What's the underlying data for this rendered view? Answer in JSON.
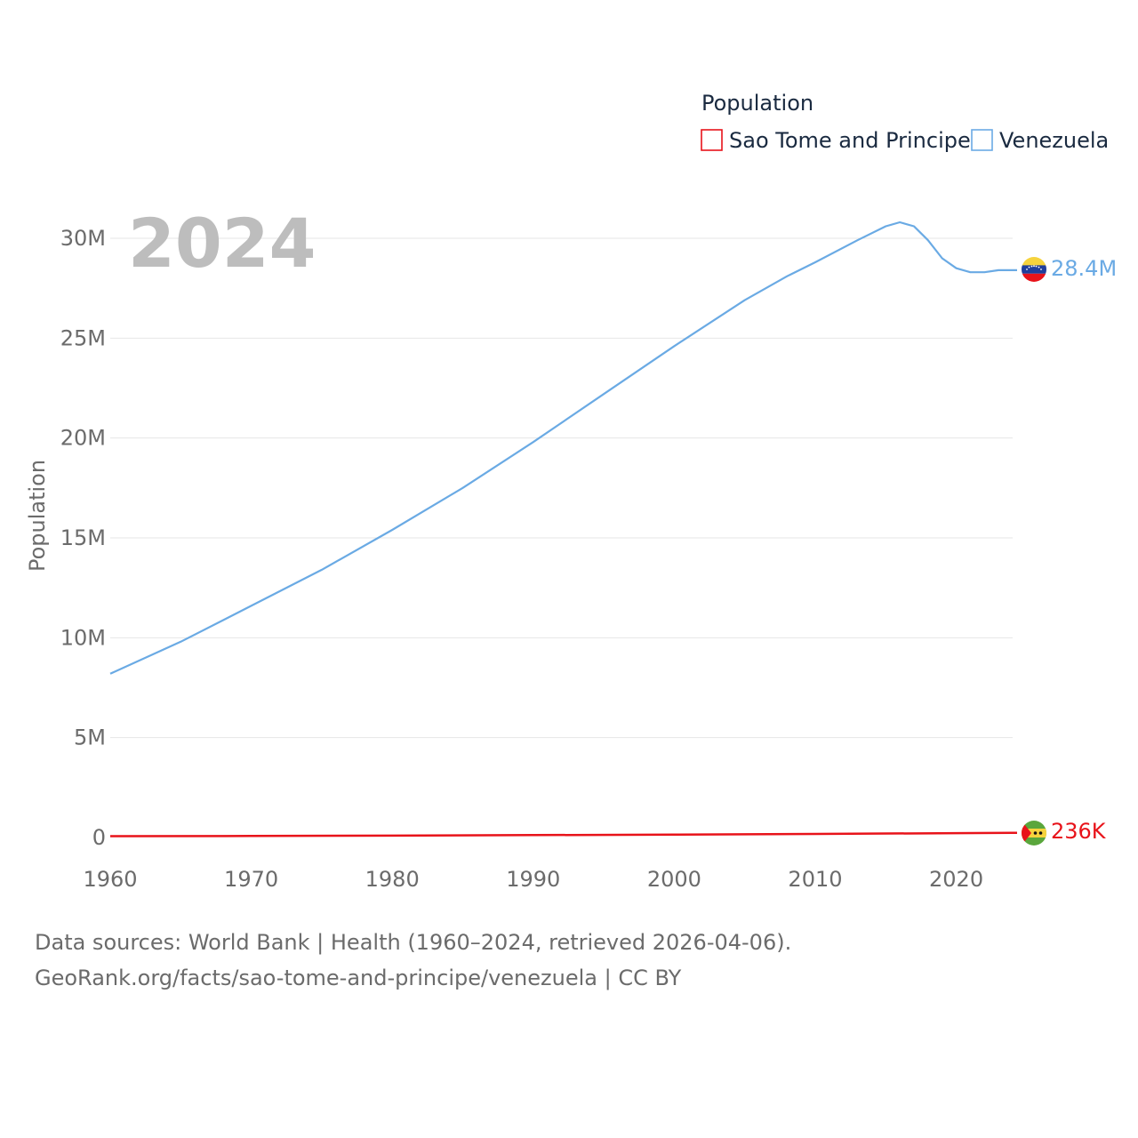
{
  "chart_data": {
    "type": "line",
    "legend": {
      "title": "Population",
      "position": "top-right"
    },
    "current_year_label": "2024",
    "ylabel": "Population",
    "xlabel": "",
    "xlim": [
      1960,
      2024
    ],
    "ylim": [
      0,
      30000000
    ],
    "grid": true,
    "x_ticks": [
      {
        "value": 1960,
        "label": "1960"
      },
      {
        "value": 1970,
        "label": "1970"
      },
      {
        "value": 1980,
        "label": "1980"
      },
      {
        "value": 1990,
        "label": "1990"
      },
      {
        "value": 2000,
        "label": "2000"
      },
      {
        "value": 2010,
        "label": "2010"
      },
      {
        "value": 2020,
        "label": "2020"
      }
    ],
    "y_ticks": [
      {
        "value": 0,
        "label": "0"
      },
      {
        "value": 5000000,
        "label": "5M"
      },
      {
        "value": 10000000,
        "label": "10M"
      },
      {
        "value": 15000000,
        "label": "15M"
      },
      {
        "value": 20000000,
        "label": "20M"
      },
      {
        "value": 25000000,
        "label": "25M"
      },
      {
        "value": 30000000,
        "label": "30M"
      }
    ],
    "series": [
      {
        "name": "Sao Tome and Principe",
        "color": "#e8131a",
        "end_label": "236K",
        "end_icon": "sao-tome-and-principe-flag-icon",
        "x": [
          1960,
          1970,
          1980,
          1990,
          2000,
          2010,
          2020,
          2024
        ],
        "values": [
          65000,
          74000,
          95000,
          120000,
          142000,
          180000,
          219000,
          236000
        ]
      },
      {
        "name": "Venezuela",
        "color": "#6aaae4",
        "end_label": "28.4M",
        "end_icon": "venezuela-flag-icon",
        "x": [
          1960,
          1965,
          1970,
          1975,
          1980,
          1985,
          1990,
          1995,
          2000,
          2005,
          2008,
          2010,
          2013,
          2015,
          2016,
          2017,
          2018,
          2019,
          2020,
          2021,
          2022,
          2023,
          2024
        ],
        "values": [
          8200000,
          9800000,
          11600000,
          13400000,
          15400000,
          17500000,
          19800000,
          22200000,
          24600000,
          26900000,
          28100000,
          28800000,
          29900000,
          30600000,
          30800000,
          30600000,
          29900000,
          29000000,
          28500000,
          28300000,
          28300000,
          28400000,
          28400000
        ]
      }
    ]
  },
  "footer": {
    "source_line": "Data sources: World Bank | Health (1960–2024, retrieved 2026-04-06).",
    "attribution_line": "GeoRank.org/facts/sao-tome-and-principe/venezuela | CC BY"
  }
}
